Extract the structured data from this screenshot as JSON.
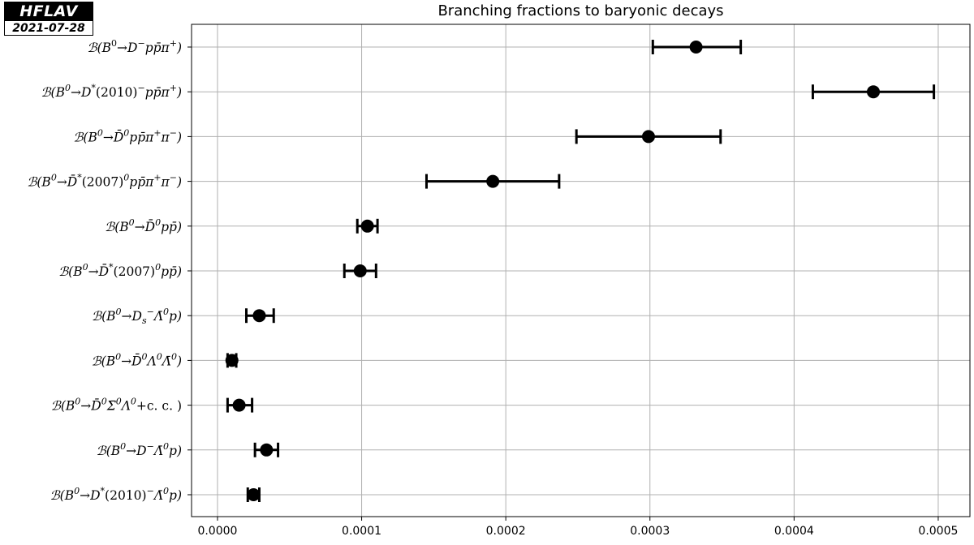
{
  "badge": {
    "name": "HFLAV",
    "date": "2021-07-28"
  },
  "chart_data": {
    "type": "scatter",
    "title": "Branching fractions to baryonic decays",
    "xlabel": "",
    "ylabel": "",
    "xlim": [
      -1.8e-05,
      0.000522
    ],
    "xticks": [
      0.0,
      0.0001,
      0.0002,
      0.0003,
      0.0004,
      0.0005
    ],
    "xtick_labels": [
      "0.0000",
      "0.0001",
      "0.0002",
      "0.0003",
      "0.0004",
      "0.0005"
    ],
    "grid": true,
    "legend": "none",
    "marker_color": "#000000",
    "grid_color": "#b0b0b0",
    "points": [
      {
        "label": "𝓑(B⁰→D⁻pp̄π⁺)",
        "html": "ℬ(B<tspan class='up' dy='-7' font-size='11'>0</tspan><tspan dy='7'>→D</tspan><tspan dy='-7' font-size='11'>−</tspan><tspan dy='7'>pp̄π</tspan><tspan dy='-7' font-size='11'>+</tspan><tspan dy='7'>)</tspan>",
        "value": 0.000332,
        "err_lo": 3e-05,
        "err_hi": 3.1e-05
      },
      {
        "label": "𝓑(B⁰→D*(2010)⁻pp̄π⁺)",
        "html": "ℬ(B<tspan dy='-7' font-size='11'>0</tspan><tspan dy='7'>→D</tspan><tspan dy='-7' font-size='11'>*</tspan><tspan dy='7' class='up'>(2010)</tspan><tspan dy='-7' font-size='11'>−</tspan><tspan dy='7'>pp̄π</tspan><tspan dy='-7' font-size='11'>+</tspan><tspan dy='7'>)</tspan>",
        "value": 0.000455,
        "err_lo": 4.2e-05,
        "err_hi": 4.2e-05
      },
      {
        "label": "𝓑(B⁰→D̄⁰pp̄π⁺π⁻)",
        "html": "ℬ(B<tspan dy='-7' font-size='11'>0</tspan><tspan dy='7'>→D̄</tspan><tspan dy='-7' font-size='11'>0</tspan><tspan dy='7'>pp̄π</tspan><tspan dy='-7' font-size='11'>+</tspan><tspan dy='7'>π</tspan><tspan dy='-7' font-size='11'>−</tspan><tspan dy='7'>)</tspan>",
        "value": 0.000299,
        "err_lo": 5e-05,
        "err_hi": 5e-05
      },
      {
        "label": "𝓑(B⁰→D̄*(2007)⁰pp̄π⁺π⁻)",
        "html": "ℬ(B<tspan dy='-7' font-size='11'>0</tspan><tspan dy='7'>→D̄</tspan><tspan dy='-7' font-size='11'>*</tspan><tspan dy='7' class='up'>(2007)</tspan><tspan dy='-7' font-size='11'>0</tspan><tspan dy='7'>pp̄π</tspan><tspan dy='-7' font-size='11'>+</tspan><tspan dy='7'>π</tspan><tspan dy='-7' font-size='11'>−</tspan><tspan dy='7'>)</tspan>",
        "value": 0.000191,
        "err_lo": 4.6e-05,
        "err_hi": 4.6e-05
      },
      {
        "label": "𝓑(B⁰→D̄⁰pp̄)",
        "html": "ℬ(B<tspan dy='-7' font-size='11'>0</tspan><tspan dy='7'>→D̄</tspan><tspan dy='-7' font-size='11'>0</tspan><tspan dy='7'>pp̄)</tspan>",
        "value": 0.000104,
        "err_lo": 7e-06,
        "err_hi": 7e-06
      },
      {
        "label": "𝓑(B⁰→D̄*(2007)⁰pp̄)",
        "html": "ℬ(B<tspan dy='-7' font-size='11'>0</tspan><tspan dy='7'>→D̄</tspan><tspan dy='-7' font-size='11'>*</tspan><tspan dy='7' class='up'>(2007)</tspan><tspan dy='-7' font-size='11'>0</tspan><tspan dy='7'>pp̄)</tspan>",
        "value": 9.9e-05,
        "err_lo": 1.1e-05,
        "err_hi": 1.1e-05
      },
      {
        "label": "𝓑(B⁰→Ds⁻Λ̄⁰p)",
        "html": "ℬ(B<tspan dy='-7' font-size='11'>0</tspan><tspan dy='7'>→D</tspan><tspan dy='4' font-size='11'>s</tspan><tspan dy='-11' font-size='11'>−</tspan><tspan dy='7'>Λ̄</tspan><tspan dy='-7' font-size='11'>0</tspan><tspan dy='7'>p)</tspan>",
        "value": 2.9e-05,
        "err_lo": 9e-06,
        "err_hi": 1e-05
      },
      {
        "label": "𝓑(B⁰→D̄⁰Λ⁰Λ̄⁰)",
        "html": "ℬ(B<tspan dy='-7' font-size='11'>0</tspan><tspan dy='7'>→D̄</tspan><tspan dy='-7' font-size='11'>0</tspan><tspan dy='7'>Λ</tspan><tspan dy='-7' font-size='11'>0</tspan><tspan dy='7'>Λ̄</tspan><tspan dy='-7' font-size='11'>0</tspan><tspan dy='7'>)</tspan>",
        "value": 1e-05,
        "err_lo": 3e-06,
        "err_hi": 3e-06
      },
      {
        "label": "𝓑(B⁰→D̄⁰Σ̄⁰Λ⁰+c.c.)",
        "html": "ℬ(B<tspan dy='-7' font-size='11'>0</tspan><tspan dy='7'>→D̄</tspan><tspan dy='-7' font-size='11'>0</tspan><tspan dy='7'>Σ̄</tspan><tspan dy='-7' font-size='11'>0</tspan><tspan dy='7'>Λ</tspan><tspan dy='-7' font-size='11'>0</tspan><tspan dy='7' class='up'>+c. c. )</tspan>",
        "value": 1.5e-05,
        "err_lo": 8e-06,
        "err_hi": 9e-06
      },
      {
        "label": "𝓑(B⁰→D⁻Λ̄⁰p)",
        "html": "ℬ(B<tspan dy='-7' font-size='11'>0</tspan><tspan dy='7'>→D</tspan><tspan dy='-7' font-size='11'>−</tspan><tspan dy='7'>Λ̄</tspan><tspan dy='-7' font-size='11'>0</tspan><tspan dy='7'>p)</tspan>",
        "value": 3.4e-05,
        "err_lo": 8e-06,
        "err_hi": 8e-06
      },
      {
        "label": "𝓑(B⁰→D*(2010)⁻Λ̄⁰p)",
        "html": "ℬ(B<tspan dy='-7' font-size='11'>0</tspan><tspan dy='7'>→D</tspan><tspan dy='-7' font-size='11'>*</tspan><tspan dy='7' class='up'>(2010)</tspan><tspan dy='-7' font-size='11'>−</tspan><tspan dy='7'>Λ̄</tspan><tspan dy='-7' font-size='11'>0</tspan><tspan dy='7'>p)</tspan>",
        "value": 2.5e-05,
        "err_lo": 4e-06,
        "err_hi": 4e-06
      }
    ]
  }
}
